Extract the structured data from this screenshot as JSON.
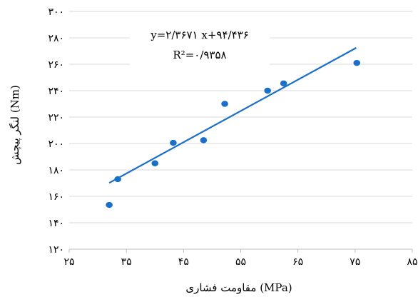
{
  "chart_data": {
    "type": "scatter",
    "title": "",
    "xlabel": "مقاومت فشاری (MPa)",
    "ylabel": "لنگر پیچش (Nm)",
    "xlim": [
      25,
      85
    ],
    "ylim": [
      120,
      300
    ],
    "x_ticks": [
      25,
      35,
      45,
      55,
      65,
      75,
      85
    ],
    "x_tick_labels": [
      "۲۵",
      "۳۵",
      "۴۵",
      "۵۵",
      "۶۵",
      "۷۵",
      "۸۵"
    ],
    "y_ticks": [
      120,
      140,
      160,
      180,
      200,
      220,
      240,
      260,
      280,
      300
    ],
    "y_tick_labels": [
      "۱۲۰",
      "۱۴۰",
      "۱۶۰",
      "۱۸۰",
      "۲۰۰",
      "۲۲۰",
      "۲۴۰",
      "۲۶۰",
      "۲۸۰",
      "۳۰۰"
    ],
    "grid": "horizontal",
    "series": [
      {
        "type": "scatter",
        "color": "#1a6fc9",
        "points": [
          {
            "x": 32.0,
            "y": 153.5
          },
          {
            "x": 33.5,
            "y": 173.0
          },
          {
            "x": 40.0,
            "y": 185.0
          },
          {
            "x": 43.2,
            "y": 200.5
          },
          {
            "x": 48.5,
            "y": 202.5
          },
          {
            "x": 52.2,
            "y": 230.0
          },
          {
            "x": 59.7,
            "y": 240.0
          },
          {
            "x": 62.5,
            "y": 245.5
          },
          {
            "x": 75.3,
            "y": 261.0
          }
        ]
      },
      {
        "type": "line",
        "trendline": true,
        "color": "#1a6fc9",
        "x": [
          32.0,
          75.2
        ],
        "slope": 2.3671,
        "intercept": 94.436
      }
    ],
    "annotations": {
      "equation": "y=۲/۳۶۷۱ x+۹۴/۴۳۶",
      "r_squared": "R²=۰/۹۳۵۸"
    }
  }
}
